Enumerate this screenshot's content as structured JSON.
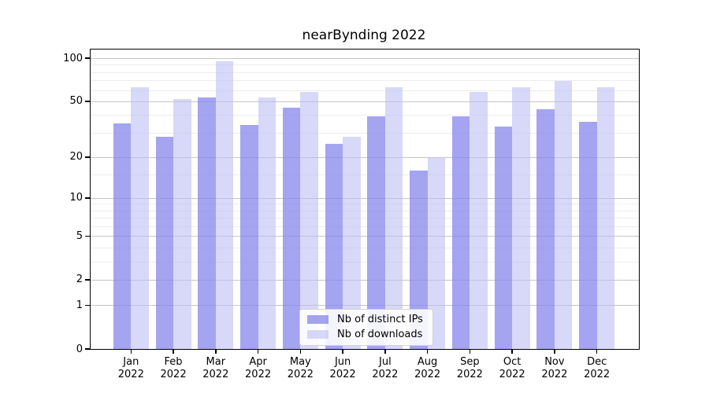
{
  "title": "nearBynding 2022",
  "chart_data": {
    "type": "bar",
    "title": "nearBynding 2022",
    "categories": [
      "Jan",
      "Feb",
      "Mar",
      "Apr",
      "May",
      "Jun",
      "Jul",
      "Aug",
      "Sep",
      "Oct",
      "Nov",
      "Dec"
    ],
    "category_year": "2022",
    "series": [
      {
        "name": "Nb of distinct IPs",
        "color": "#8686eb",
        "alpha": 0.75,
        "values": [
          35,
          28,
          53,
          34,
          45,
          25,
          39,
          16,
          39,
          33,
          44,
          36
        ]
      },
      {
        "name": "Nb of downloads",
        "color": "#bbbbf4",
        "alpha": 0.58,
        "values": [
          63,
          52,
          95,
          53,
          58,
          28,
          63,
          20,
          58,
          63,
          69,
          63
        ]
      }
    ],
    "y_axis": {
      "scale": "log1p",
      "major_ticks": [
        0,
        1,
        2,
        5,
        10,
        20,
        50,
        100
      ],
      "minor_ticks": [
        3,
        4,
        6,
        7,
        8,
        9,
        15,
        30,
        40,
        60,
        70,
        80,
        90
      ],
      "top_value": 115
    },
    "x_axis": {
      "label_line2": "2022"
    },
    "grid": true,
    "legend_position": "lower center inside",
    "colors": {
      "major_grid": "#c6c6c6",
      "minor_grid": "#ededed",
      "axis": "#000000"
    }
  }
}
